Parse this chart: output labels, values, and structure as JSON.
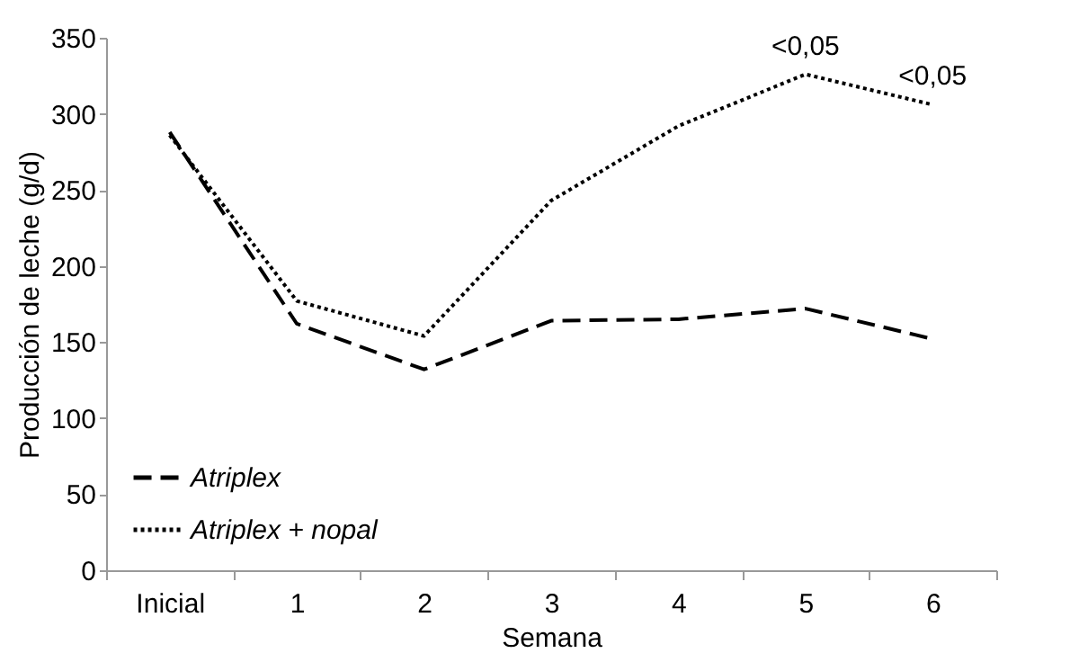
{
  "chart_data": {
    "type": "line",
    "xlabel": "Semana",
    "ylabel": "Producción de leche (g/d)",
    "categories": [
      "Inicial",
      "1",
      "2",
      "3",
      "4",
      "5",
      "6"
    ],
    "series": [
      {
        "name": "Atriplex",
        "color": "#000000",
        "line_style": "dashed",
        "values": [
          288,
          162,
          132,
          164,
          165,
          172,
          152
        ]
      },
      {
        "name": "Atriplex + nopal",
        "color": "#000000",
        "line_style": "dotted",
        "values": [
          286,
          177,
          154,
          243,
          292,
          326,
          306
        ]
      }
    ],
    "ylim": [
      0,
      350
    ],
    "yticks": [
      0,
      50,
      100,
      150,
      200,
      250,
      300,
      350
    ],
    "grid": false,
    "legend": "bottom left",
    "marker": "none",
    "annotations": [
      {
        "text": "<0,05",
        "x": "5",
        "y": 326
      },
      {
        "text": "<0,05",
        "x": "6",
        "y": 306
      }
    ]
  }
}
